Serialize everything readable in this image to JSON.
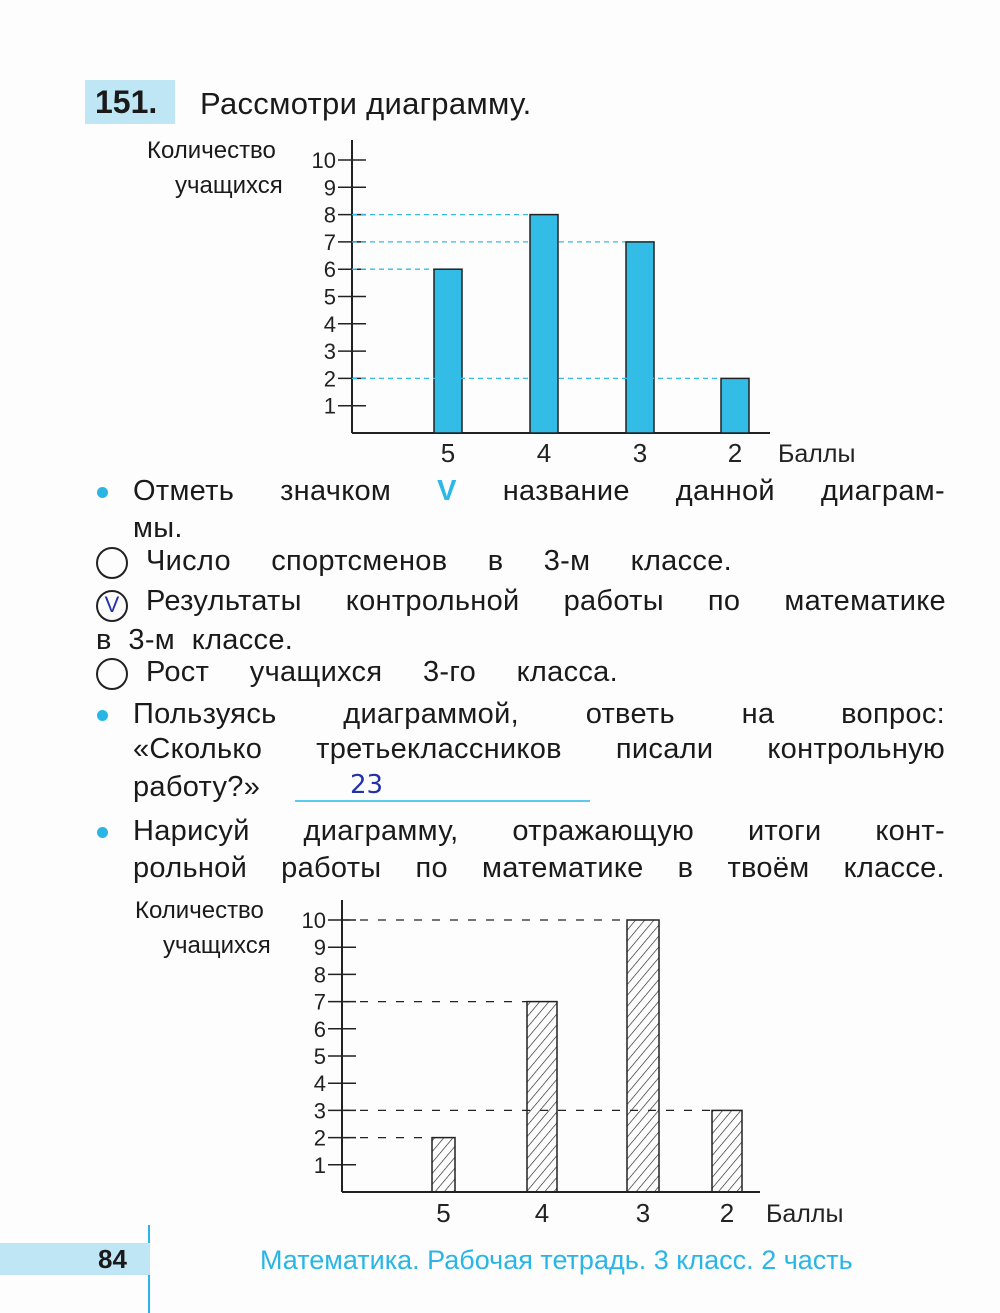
{
  "exercise": {
    "number": "151.",
    "title": "Рассмотри диаграмму.",
    "task1": {
      "text_line1": [
        "Отметь",
        "значком",
        "название",
        "данной",
        "диаграм-"
      ],
      "text_line2": "мы.",
      "check_symbol": "V",
      "options": [
        {
          "line1": [
            "Число",
            "спортсменов",
            "в",
            "3-м",
            "классе."
          ],
          "checked": false
        },
        {
          "line1": [
            "Результаты",
            "контрольной",
            "работы",
            "по",
            "математике"
          ],
          "line2": "в  3-м  классе.",
          "checked": true,
          "mark": "V"
        },
        {
          "line1": [
            "Рост",
            "учащихся",
            "3-го",
            "класса."
          ],
          "checked": false
        }
      ]
    },
    "task2": {
      "line1": [
        "Пользуясь",
        "диаграммой,",
        "ответь",
        "на",
        "вопрос:"
      ],
      "line2": [
        "«Сколько",
        "третьеклассников",
        "писали",
        "контрольную"
      ],
      "line3": "работу?»",
      "answer": "23"
    },
    "task3": {
      "line1": [
        "Нарисуй",
        "диаграмму,",
        "отражающую",
        "итоги",
        "конт-"
      ],
      "line2": [
        "рольной",
        "работы",
        "по",
        "математике",
        "в",
        "твоём",
        "классе."
      ]
    }
  },
  "chart_data": [
    {
      "type": "bar",
      "ylabel_line1": "Количество",
      "ylabel_line2": "учащихся",
      "xlabel": "Баллы",
      "categories": [
        "5",
        "4",
        "3",
        "2"
      ],
      "values": [
        6,
        8,
        7,
        2
      ],
      "yticks": [
        1,
        2,
        3,
        4,
        5,
        6,
        7,
        8,
        9,
        10
      ],
      "ylim": [
        0,
        10
      ],
      "bar_color": "#33bde6",
      "guide_lines": true
    },
    {
      "type": "bar",
      "ylabel_line1": "Количество",
      "ylabel_line2": "учащихся",
      "xlabel": "Баллы",
      "categories": [
        "5",
        "4",
        "3",
        "2"
      ],
      "values": [
        2,
        7,
        10,
        3
      ],
      "yticks": [
        1,
        2,
        3,
        4,
        5,
        6,
        7,
        8,
        9,
        10
      ],
      "ylim": [
        0,
        10
      ],
      "bar_style": "hatched",
      "guide_lines": true
    }
  ],
  "footer": {
    "page_number": "84",
    "book_title": "Математика. Рабочая тетрадь. 3 класс. 2 часть"
  },
  "colors": {
    "accent": "#29b6e6",
    "box": "#bfe6f5",
    "ink": "#2233aa"
  }
}
